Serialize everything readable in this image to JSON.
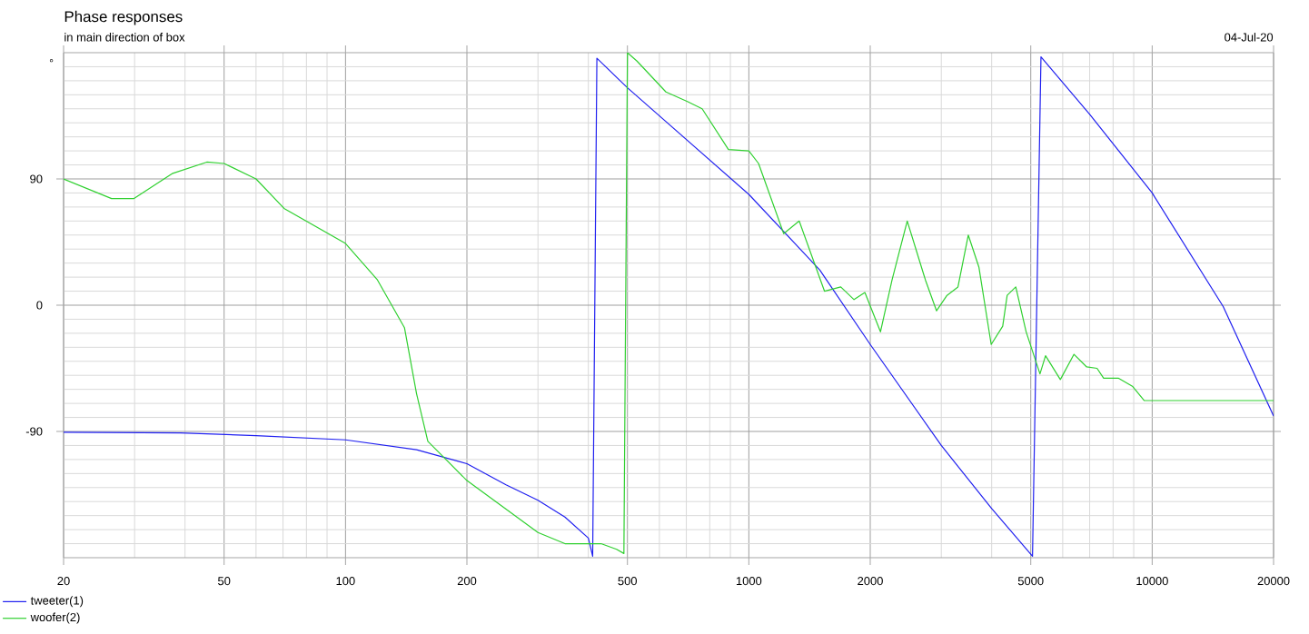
{
  "chart_data": {
    "type": "line",
    "title": "Phase responses",
    "subtitle": "in main direction of box",
    "ylabel": "°",
    "annotations": [
      "04-Jul-20"
    ],
    "log": "x",
    "grid": true,
    "legend": "bottom left",
    "marker": "none",
    "line_style": "solid",
    "xlim": [
      20,
      20000
    ],
    "ylim": [
      -180,
      180
    ],
    "xticks": [
      20,
      {
        "value": 30,
        "label": null
      },
      {
        "value": 40,
        "label": null
      },
      50,
      {
        "value": 60,
        "label": null
      },
      {
        "value": 70,
        "label": null
      },
      {
        "value": 80,
        "label": null
      },
      {
        "value": 90,
        "label": null
      },
      100,
      200,
      {
        "value": 300,
        "label": null
      },
      {
        "value": 400,
        "label": null
      },
      500,
      {
        "value": 600,
        "label": null
      },
      {
        "value": 700,
        "label": null
      },
      {
        "value": 800,
        "label": null
      },
      {
        "value": 900,
        "label": null
      },
      1000,
      2000,
      {
        "value": 3000,
        "label": null
      },
      {
        "value": 4000,
        "label": null
      },
      5000,
      {
        "value": 6000,
        "label": null
      },
      {
        "value": 7000,
        "label": null
      },
      {
        "value": 8000,
        "label": null
      },
      {
        "value": 9000,
        "label": null
      },
      10000,
      20000
    ],
    "yticks": [
      {
        "value": -170,
        "label": null
      },
      {
        "value": -160,
        "label": null
      },
      {
        "value": -150,
        "label": null
      },
      {
        "value": -140,
        "label": null
      },
      {
        "value": -130,
        "label": null
      },
      {
        "value": -120,
        "label": null
      },
      {
        "value": -110,
        "label": null
      },
      {
        "value": -100,
        "label": null
      },
      -90,
      {
        "value": -80,
        "label": null
      },
      {
        "value": -70,
        "label": null
      },
      {
        "value": -60,
        "label": null
      },
      {
        "value": -50,
        "label": null
      },
      {
        "value": -40,
        "label": null
      },
      {
        "value": -30,
        "label": null
      },
      {
        "value": -20,
        "label": null
      },
      {
        "value": -10,
        "label": null
      },
      0,
      {
        "value": 10,
        "label": null
      },
      {
        "value": 20,
        "label": null
      },
      {
        "value": 30,
        "label": null
      },
      {
        "value": 40,
        "label": null
      },
      {
        "value": 50,
        "label": null
      },
      {
        "value": 60,
        "label": null
      },
      {
        "value": 70,
        "label": null
      },
      {
        "value": 80,
        "label": null
      },
      90,
      {
        "value": 100,
        "label": null
      },
      {
        "value": 110,
        "label": null
      },
      {
        "value": 120,
        "label": null
      },
      {
        "value": 130,
        "label": null
      },
      {
        "value": 140,
        "label": null
      },
      {
        "value": 150,
        "label": null
      },
      {
        "value": 160,
        "label": null
      },
      {
        "value": 170,
        "label": null
      }
    ],
    "series": [
      {
        "name": "tweeter(1)",
        "color": "#2020f0",
        "x": [
          20,
          39,
          60,
          100,
          150,
          200,
          250,
          300,
          350,
          400,
          410,
          420,
          500,
          1000,
          1500,
          2000,
          3000,
          4000,
          5050,
          5300,
          7000,
          10000,
          15000,
          20000
        ],
        "values": [
          -90.6,
          -91,
          -93,
          -96,
          -103,
          -113,
          -128,
          -139,
          -151,
          -166,
          -179,
          176,
          155,
          79,
          25,
          -28,
          -100,
          -145,
          -179,
          177,
          136,
          80,
          -1,
          -79
        ]
      },
      {
        "name": "woofer(2)",
        "color": "#30d030",
        "x": [
          20,
          26.3,
          29.9,
          37.3,
          45.3,
          50,
          60,
          70.4,
          100,
          120,
          140,
          150,
          160,
          200,
          300,
          350,
          430,
          470,
          490,
          500,
          528,
          623,
          706,
          766,
          890,
          1000,
          1057,
          1220,
          1333,
          1540,
          1690,
          1823,
          1940,
          2120,
          2265,
          2470,
          2740,
          2920,
          3100,
          3300,
          3500,
          3720,
          3990,
          4260,
          4370,
          4590,
          4870,
          5270,
          5440,
          5920,
          6400,
          6880,
          7300,
          7580,
          8240,
          8950,
          9560,
          20000
        ],
        "values": [
          90,
          76,
          76,
          94,
          102,
          101,
          90,
          69,
          44,
          18,
          -16,
          -63,
          -97,
          -125,
          -162,
          -170,
          -170,
          -174,
          -177,
          180,
          174,
          152,
          145,
          140,
          111,
          110,
          101,
          51,
          60,
          10,
          13,
          4,
          9,
          -19,
          18,
          60,
          18,
          -4,
          7,
          13,
          50,
          27,
          -28,
          -15,
          7,
          13,
          -19,
          -49,
          -36,
          -53,
          -35,
          -44,
          -45,
          -52,
          -52,
          -58,
          -68,
          -68
        ]
      }
    ]
  }
}
